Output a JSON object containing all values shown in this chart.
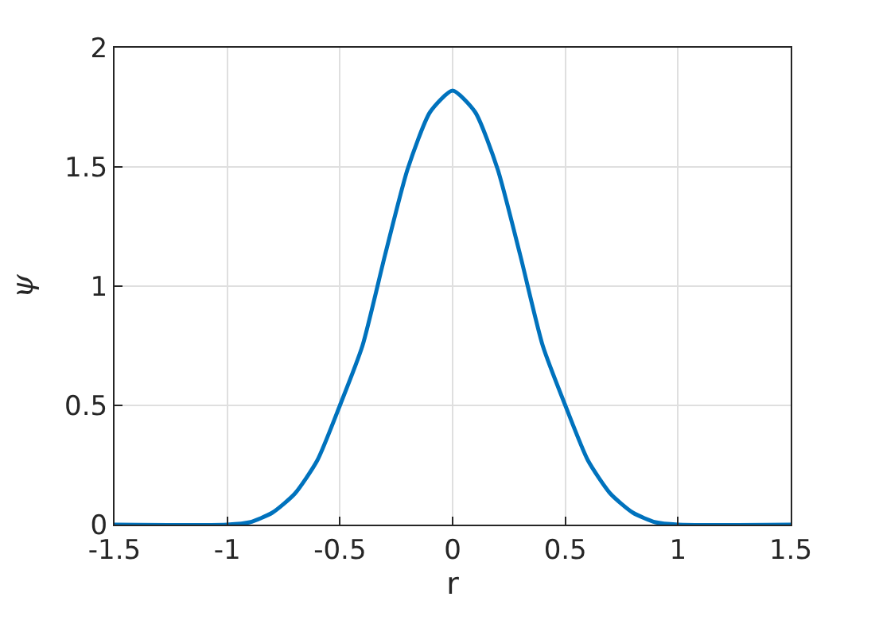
{
  "chart_data": {
    "type": "line",
    "xlabel": "r",
    "ylabel": "ψ",
    "x": [
      -1.5,
      -1.0,
      -0.9,
      -0.8,
      -0.7,
      -0.6,
      -0.5,
      -0.4,
      -0.3,
      -0.2,
      -0.1,
      0,
      0.1,
      0.2,
      0.3,
      0.4,
      0.5,
      0.6,
      0.7,
      0.8,
      0.9,
      1.0,
      1.5
    ],
    "series": [
      {
        "color": "#0072bd",
        "values": [
          0,
          0,
          0.01,
          0.05,
          0.13,
          0.27,
          0.5,
          0.75,
          1.13,
          1.49,
          1.73,
          1.82,
          1.73,
          1.49,
          1.13,
          0.75,
          0.5,
          0.27,
          0.13,
          0.05,
          0.01,
          0,
          0
        ]
      }
    ],
    "xlim": [
      -1.5,
      1.5
    ],
    "xticks": [
      -1.5,
      -1,
      -0.5,
      0,
      0.5,
      1,
      1.5
    ],
    "ylim": [
      0,
      2
    ],
    "yticks": [
      0,
      0.5,
      1,
      1.5,
      2
    ],
    "grid": true,
    "marker": "none",
    "line_style": "solid"
  }
}
